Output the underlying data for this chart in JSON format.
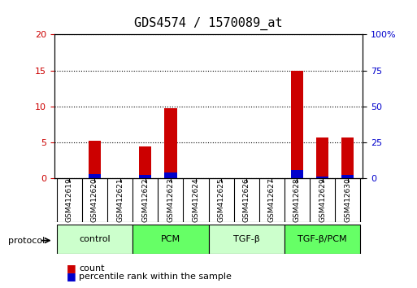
{
  "title": "GDS4574 / 1570089_at",
  "samples": [
    "GSM412619",
    "GSM412620",
    "GSM412621",
    "GSM412622",
    "GSM412623",
    "GSM412624",
    "GSM412625",
    "GSM412626",
    "GSM412627",
    "GSM412628",
    "GSM412629",
    "GSM412630"
  ],
  "count_values": [
    0,
    5.3,
    0,
    4.5,
    9.8,
    0,
    0,
    0,
    0,
    15.0,
    5.7,
    5.7
  ],
  "percentile_values": [
    0,
    3.0,
    0,
    2.5,
    4.0,
    0,
    0,
    0,
    0,
    6.0,
    1.5,
    2.5
  ],
  "count_color": "#cc0000",
  "percentile_color": "#0000cc",
  "ylim_left": [
    0,
    20
  ],
  "ylim_right": [
    0,
    100
  ],
  "yticks_left": [
    0,
    5,
    10,
    15,
    20
  ],
  "yticks_right": [
    0,
    25,
    50,
    75,
    100
  ],
  "ytick_labels_right": [
    "0",
    "25",
    "50",
    "75",
    "100%"
  ],
  "groups": [
    {
      "label": "control",
      "start": 0,
      "end": 3,
      "color": "#ccffcc"
    },
    {
      "label": "PCM",
      "start": 3,
      "end": 6,
      "color": "#66ff66"
    },
    {
      "label": "TGF-β",
      "start": 6,
      "end": 9,
      "color": "#ccffcc"
    },
    {
      "label": "TGF-β/PCM",
      "start": 9,
      "end": 12,
      "color": "#66ff66"
    }
  ],
  "bar_width": 0.5,
  "grid_color": "#000000",
  "background_color": "#ffffff",
  "plot_bg_color": "#ffffff",
  "legend_count": "count",
  "legend_percentile": "percentile rank within the sample",
  "protocol_label": "protocol"
}
